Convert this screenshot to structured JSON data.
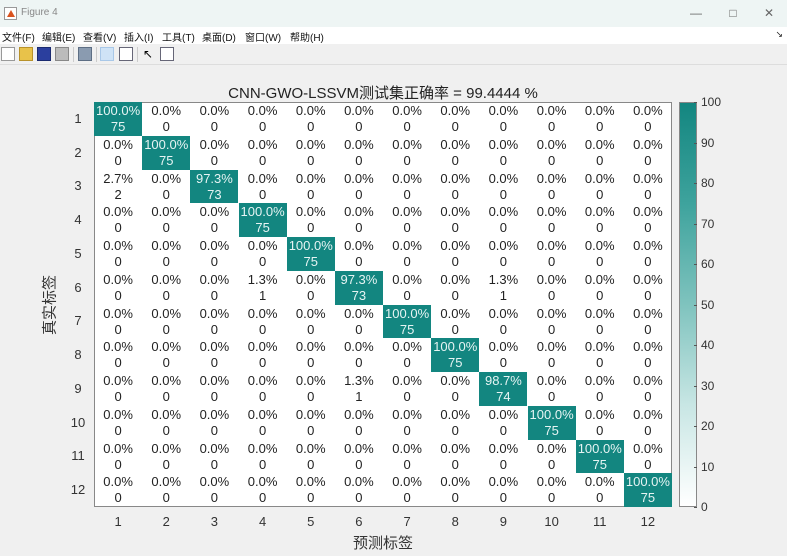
{
  "window": {
    "title": "Figure 4",
    "controls": [
      "minimize",
      "maximize",
      "close"
    ]
  },
  "menubar": {
    "items": [
      "文件(F)",
      "编辑(E)",
      "查看(V)",
      "插入(I)",
      "工具(T)",
      "桌面(D)",
      "窗口(W)",
      "帮助(H)"
    ]
  },
  "toolbar": {
    "icons": [
      "new-figure-icon",
      "open-file-icon",
      "save-icon",
      "print-icon",
      "link-plot-icon",
      "colorbar-icon",
      "legend-icon",
      "pointer-icon",
      "property-editor-icon"
    ]
  },
  "chart_data": {
    "type": "heatmap",
    "title": "CNN-GWO-LSSVM测试集正确率 = 99.4444 %",
    "xlabel": "预测标签",
    "ylabel": "真实标签",
    "x_ticks": [
      "1",
      "2",
      "3",
      "4",
      "5",
      "6",
      "7",
      "8",
      "9",
      "10",
      "11",
      "12"
    ],
    "y_ticks": [
      "1",
      "2",
      "3",
      "4",
      "5",
      "6",
      "7",
      "8",
      "9",
      "10",
      "11",
      "12"
    ],
    "colorbar": {
      "min": 0,
      "max": 100,
      "ticks": [
        0,
        10,
        20,
        30,
        40,
        50,
        60,
        70,
        80,
        90,
        100
      ],
      "color_low": "#ffffff",
      "color_high": "#138680"
    },
    "counts": [
      [
        75,
        0,
        0,
        0,
        0,
        0,
        0,
        0,
        0,
        0,
        0,
        0
      ],
      [
        0,
        75,
        0,
        0,
        0,
        0,
        0,
        0,
        0,
        0,
        0,
        0
      ],
      [
        2,
        0,
        73,
        0,
        0,
        0,
        0,
        0,
        0,
        0,
        0,
        0
      ],
      [
        0,
        0,
        0,
        75,
        0,
        0,
        0,
        0,
        0,
        0,
        0,
        0
      ],
      [
        0,
        0,
        0,
        0,
        75,
        0,
        0,
        0,
        0,
        0,
        0,
        0
      ],
      [
        0,
        0,
        0,
        1,
        0,
        73,
        0,
        0,
        1,
        0,
        0,
        0
      ],
      [
        0,
        0,
        0,
        0,
        0,
        0,
        75,
        0,
        0,
        0,
        0,
        0
      ],
      [
        0,
        0,
        0,
        0,
        0,
        0,
        0,
        75,
        0,
        0,
        0,
        0
      ],
      [
        0,
        0,
        0,
        0,
        0,
        1,
        0,
        0,
        74,
        0,
        0,
        0
      ],
      [
        0,
        0,
        0,
        0,
        0,
        0,
        0,
        0,
        0,
        75,
        0,
        0
      ],
      [
        0,
        0,
        0,
        0,
        0,
        0,
        0,
        0,
        0,
        0,
        75,
        0
      ],
      [
        0,
        0,
        0,
        0,
        0,
        0,
        0,
        0,
        0,
        0,
        0,
        75
      ]
    ],
    "percents": [
      [
        "100.0%",
        "0.0%",
        "0.0%",
        "0.0%",
        "0.0%",
        "0.0%",
        "0.0%",
        "0.0%",
        "0.0%",
        "0.0%",
        "0.0%",
        "0.0%"
      ],
      [
        "0.0%",
        "100.0%",
        "0.0%",
        "0.0%",
        "0.0%",
        "0.0%",
        "0.0%",
        "0.0%",
        "0.0%",
        "0.0%",
        "0.0%",
        "0.0%"
      ],
      [
        "2.7%",
        "0.0%",
        "97.3%",
        "0.0%",
        "0.0%",
        "0.0%",
        "0.0%",
        "0.0%",
        "0.0%",
        "0.0%",
        "0.0%",
        "0.0%"
      ],
      [
        "0.0%",
        "0.0%",
        "0.0%",
        "100.0%",
        "0.0%",
        "0.0%",
        "0.0%",
        "0.0%",
        "0.0%",
        "0.0%",
        "0.0%",
        "0.0%"
      ],
      [
        "0.0%",
        "0.0%",
        "0.0%",
        "0.0%",
        "100.0%",
        "0.0%",
        "0.0%",
        "0.0%",
        "0.0%",
        "0.0%",
        "0.0%",
        "0.0%"
      ],
      [
        "0.0%",
        "0.0%",
        "0.0%",
        "1.3%",
        "0.0%",
        "97.3%",
        "0.0%",
        "0.0%",
        "1.3%",
        "0.0%",
        "0.0%",
        "0.0%"
      ],
      [
        "0.0%",
        "0.0%",
        "0.0%",
        "0.0%",
        "0.0%",
        "0.0%",
        "100.0%",
        "0.0%",
        "0.0%",
        "0.0%",
        "0.0%",
        "0.0%"
      ],
      [
        "0.0%",
        "0.0%",
        "0.0%",
        "0.0%",
        "0.0%",
        "0.0%",
        "0.0%",
        "100.0%",
        "0.0%",
        "0.0%",
        "0.0%",
        "0.0%"
      ],
      [
        "0.0%",
        "0.0%",
        "0.0%",
        "0.0%",
        "0.0%",
        "1.3%",
        "0.0%",
        "0.0%",
        "98.7%",
        "0.0%",
        "0.0%",
        "0.0%"
      ],
      [
        "0.0%",
        "0.0%",
        "0.0%",
        "0.0%",
        "0.0%",
        "0.0%",
        "0.0%",
        "0.0%",
        "0.0%",
        "100.0%",
        "0.0%",
        "0.0%"
      ],
      [
        "0.0%",
        "0.0%",
        "0.0%",
        "0.0%",
        "0.0%",
        "0.0%",
        "0.0%",
        "0.0%",
        "0.0%",
        "0.0%",
        "100.0%",
        "0.0%"
      ],
      [
        "0.0%",
        "0.0%",
        "0.0%",
        "0.0%",
        "0.0%",
        "0.0%",
        "0.0%",
        "0.0%",
        "0.0%",
        "0.0%",
        "0.0%",
        "100.0%"
      ]
    ],
    "grid": false,
    "legend": "colorbar-right"
  }
}
